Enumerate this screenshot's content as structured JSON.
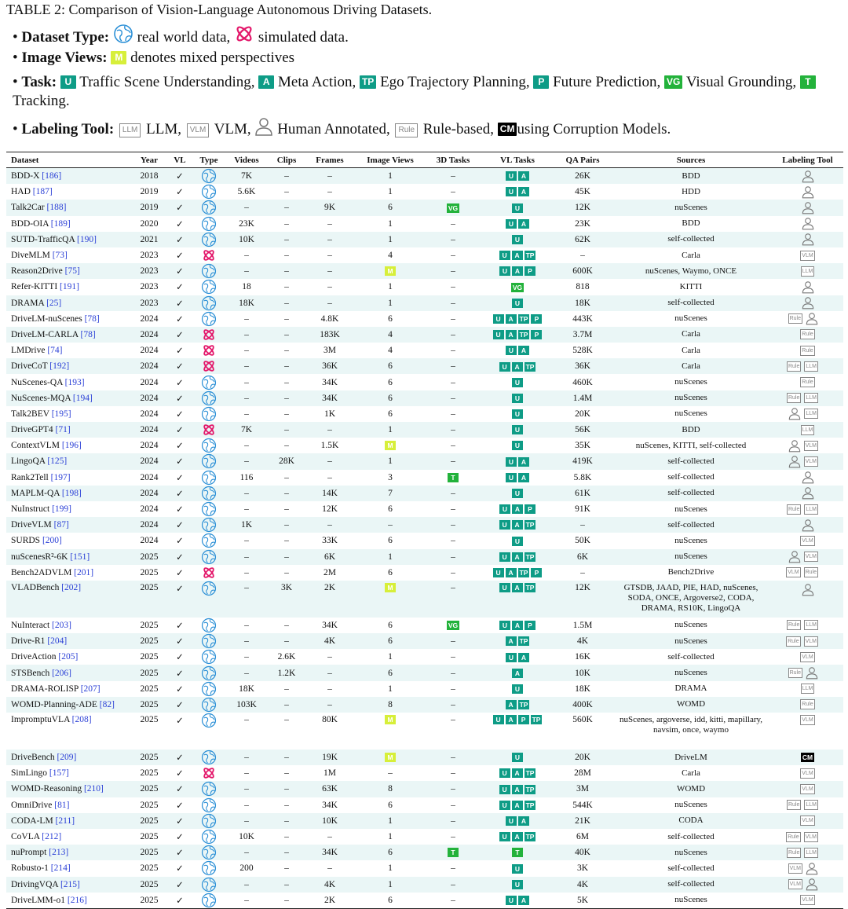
{
  "caption": "TABLE 2: Comparison of Vision-Language Autonomous Driving Datasets.",
  "legend": {
    "dataset_type_label": "Dataset Type:",
    "real_text": "real world data,",
    "sim_text": "simulated data.",
    "image_views_label": "Image Views:",
    "mixed_chip": "M",
    "mixed_text": "denotes mixed perspectives",
    "task_label": "Task:",
    "tasks": [
      {
        "chip": "U",
        "text": "Traffic Scene Understanding,",
        "color": "teal"
      },
      {
        "chip": "A",
        "text": "Meta Action,",
        "color": "teal"
      },
      {
        "chip": "TP",
        "text": "Ego Trajectory Planning,",
        "color": "teal"
      },
      {
        "chip": "P",
        "text": "Future Prediction,",
        "color": "teal"
      },
      {
        "chip": "VG",
        "text": "Visual Grounding,",
        "color": "green"
      },
      {
        "chip": "T",
        "text": "Tracking.",
        "color": "green"
      }
    ],
    "labeling_label": "Labeling Tool:",
    "tools": [
      {
        "chip": "LLM",
        "text": "LLM,"
      },
      {
        "chip": "VLM",
        "text": "VLM,"
      },
      {
        "chip": "person",
        "text": "Human Annotated,"
      },
      {
        "chip": "Rule",
        "text": "Rule-based,"
      },
      {
        "chip": "CM",
        "text": "using Corruption Models."
      }
    ]
  },
  "headers": [
    "Dataset",
    "Year",
    "VL",
    "Type",
    "Videos",
    "Clips",
    "Frames",
    "Image Views",
    "3D Tasks",
    "VL Tasks",
    "QA Pairs",
    "Sources",
    "Labeling Tool"
  ],
  "rows": [
    {
      "name": "BDD-X",
      "ref": "[186]",
      "year": "2018",
      "vl": "✓",
      "type": "real",
      "videos": "7K",
      "clips": "–",
      "frames": "–",
      "views": "1",
      "d3": "–",
      "tasks": [
        "U",
        "A"
      ],
      "qa": "26K",
      "sources": "BDD",
      "tools": [
        "person"
      ]
    },
    {
      "name": "HAD",
      "ref": "[187]",
      "year": "2019",
      "vl": "✓",
      "type": "real",
      "videos": "5.6K",
      "clips": "–",
      "frames": "–",
      "views": "1",
      "d3": "–",
      "tasks": [
        "U",
        "A"
      ],
      "qa": "45K",
      "sources": "HDD",
      "tools": [
        "person"
      ]
    },
    {
      "name": "Talk2Car",
      "ref": "[188]",
      "year": "2019",
      "vl": "✓",
      "type": "real",
      "videos": "–",
      "clips": "–",
      "frames": "9K",
      "views": "6",
      "d3": "VG",
      "tasks": [
        "U"
      ],
      "qa": "12K",
      "sources": "nuScenes",
      "tools": [
        "person"
      ]
    },
    {
      "name": "BDD-OIA",
      "ref": "[189]",
      "year": "2020",
      "vl": "✓",
      "type": "real",
      "videos": "23K",
      "clips": "–",
      "frames": "–",
      "views": "1",
      "d3": "–",
      "tasks": [
        "U",
        "A"
      ],
      "qa": "23K",
      "sources": "BDD",
      "tools": [
        "person"
      ]
    },
    {
      "name": "SUTD-TrafficQA",
      "ref": "[190]",
      "year": "2021",
      "vl": "✓",
      "type": "real",
      "videos": "10K",
      "clips": "–",
      "frames": "–",
      "views": "1",
      "d3": "–",
      "tasks": [
        "U"
      ],
      "qa": "62K",
      "sources": "self-collected",
      "tools": [
        "person"
      ]
    },
    {
      "name": "DiveMLM",
      "ref": "[73]",
      "year": "2023",
      "vl": "✓",
      "type": "sim",
      "videos": "–",
      "clips": "–",
      "frames": "–",
      "views": "4",
      "d3": "–",
      "tasks": [
        "U",
        "A",
        "TP"
      ],
      "qa": "–",
      "sources": "Carla",
      "tools": [
        "VLM"
      ]
    },
    {
      "name": "Reason2Drive",
      "ref": "[75]",
      "year": "2023",
      "vl": "✓",
      "type": "real",
      "videos": "–",
      "clips": "–",
      "frames": "–",
      "views": "M",
      "d3": "–",
      "tasks": [
        "U",
        "A",
        "P"
      ],
      "qa": "600K",
      "sources": "nuScenes, Waymo, ONCE",
      "tools": [
        "LLM"
      ]
    },
    {
      "name": "Refer-KITTI",
      "ref": "[191]",
      "year": "2023",
      "vl": "✓",
      "type": "real",
      "videos": "18",
      "clips": "–",
      "frames": "–",
      "views": "1",
      "d3": "–",
      "tasks": [
        "VG"
      ],
      "qa": "818",
      "sources": "KITTI",
      "tools": [
        "person"
      ]
    },
    {
      "name": "DRAMA",
      "ref": "[25]",
      "year": "2023",
      "vl": "✓",
      "type": "real",
      "videos": "18K",
      "clips": "–",
      "frames": "–",
      "views": "1",
      "d3": "–",
      "tasks": [
        "U"
      ],
      "qa": "18K",
      "sources": "self-collected",
      "tools": [
        "person"
      ]
    },
    {
      "name": "DriveLM-nuScenes",
      "ref": "[78]",
      "year": "2024",
      "vl": "✓",
      "type": "real",
      "videos": "–",
      "clips": "–",
      "frames": "4.8K",
      "views": "6",
      "d3": "–",
      "tasks": [
        "U",
        "A",
        "TP",
        "P"
      ],
      "qa": "443K",
      "sources": "nuScenes",
      "tools": [
        "Rule",
        "person"
      ]
    },
    {
      "name": "DriveLM-CARLA",
      "ref": "[78]",
      "year": "2024",
      "vl": "✓",
      "type": "sim",
      "videos": "–",
      "clips": "–",
      "frames": "183K",
      "views": "4",
      "d3": "–",
      "tasks": [
        "U",
        "A",
        "TP",
        "P"
      ],
      "qa": "3.7M",
      "sources": "Carla",
      "tools": [
        "Rule"
      ]
    },
    {
      "name": "LMDrive",
      "ref": "[74]",
      "year": "2024",
      "vl": "✓",
      "type": "sim",
      "videos": "–",
      "clips": "–",
      "frames": "3M",
      "views": "4",
      "d3": "–",
      "tasks": [
        "U",
        "A"
      ],
      "qa": "528K",
      "sources": "Carla",
      "tools": [
        "Rule"
      ]
    },
    {
      "name": "DriveCoT",
      "ref": "[192]",
      "year": "2024",
      "vl": "✓",
      "type": "sim",
      "videos": "–",
      "clips": "–",
      "frames": "36K",
      "views": "6",
      "d3": "–",
      "tasks": [
        "U",
        "A",
        "TP"
      ],
      "qa": "36K",
      "sources": "Carla",
      "tools": [
        "Rule",
        "LLM"
      ]
    },
    {
      "name": "NuScenes-QA",
      "ref": "[193]",
      "year": "2024",
      "vl": "✓",
      "type": "real",
      "videos": "–",
      "clips": "–",
      "frames": "34K",
      "views": "6",
      "d3": "–",
      "tasks": [
        "U"
      ],
      "qa": "460K",
      "sources": "nuScenes",
      "tools": [
        "Rule"
      ]
    },
    {
      "name": "NuScenes-MQA",
      "ref": "[194]",
      "year": "2024",
      "vl": "✓",
      "type": "real",
      "videos": "–",
      "clips": "–",
      "frames": "34K",
      "views": "6",
      "d3": "–",
      "tasks": [
        "U"
      ],
      "qa": "1.4M",
      "sources": "nuScenes",
      "tools": [
        "Rule",
        "LLM"
      ]
    },
    {
      "name": "Talk2BEV",
      "ref": "[195]",
      "year": "2024",
      "vl": "✓",
      "type": "real",
      "videos": "–",
      "clips": "–",
      "frames": "1K",
      "views": "6",
      "d3": "–",
      "tasks": [
        "U"
      ],
      "qa": "20K",
      "sources": "nuScenes",
      "tools": [
        "person",
        "LLM"
      ]
    },
    {
      "name": "DriveGPT4",
      "ref": "[71]",
      "year": "2024",
      "vl": "✓",
      "type": "sim",
      "videos": "7K",
      "clips": "–",
      "frames": "–",
      "views": "1",
      "d3": "–",
      "tasks": [
        "U"
      ],
      "qa": "56K",
      "sources": "BDD",
      "tools": [
        "LLM"
      ]
    },
    {
      "name": "ContextVLM",
      "ref": "[196]",
      "year": "2024",
      "vl": "✓",
      "type": "real",
      "videos": "–",
      "clips": "–",
      "frames": "1.5K",
      "views": "M",
      "d3": "–",
      "tasks": [
        "U"
      ],
      "qa": "35K",
      "sources": "nuScenes, KITTI, self-collected",
      "tools": [
        "person",
        "VLM"
      ]
    },
    {
      "name": "LingoQA",
      "ref": "[125]",
      "year": "2024",
      "vl": "✓",
      "type": "real",
      "videos": "–",
      "clips": "28K",
      "frames": "–",
      "views": "1",
      "d3": "–",
      "tasks": [
        "U",
        "A"
      ],
      "qa": "419K",
      "sources": "self-collected",
      "tools": [
        "person",
        "VLM"
      ]
    },
    {
      "name": "Rank2Tell",
      "ref": "[197]",
      "year": "2024",
      "vl": "✓",
      "type": "real",
      "videos": "116",
      "clips": "–",
      "frames": "–",
      "views": "3",
      "d3": "T",
      "tasks": [
        "U",
        "A"
      ],
      "qa": "5.8K",
      "sources": "self-collected",
      "tools": [
        "person"
      ]
    },
    {
      "name": "MAPLM-QA",
      "ref": "[198]",
      "year": "2024",
      "vl": "✓",
      "type": "real",
      "videos": "–",
      "clips": "–",
      "frames": "14K",
      "views": "7",
      "d3": "–",
      "tasks": [
        "U"
      ],
      "qa": "61K",
      "sources": "self-collected",
      "tools": [
        "person"
      ]
    },
    {
      "name": "NuInstruct",
      "ref": "[199]",
      "year": "2024",
      "vl": "✓",
      "type": "real",
      "videos": "–",
      "clips": "–",
      "frames": "12K",
      "views": "6",
      "d3": "–",
      "tasks": [
        "U",
        "A",
        "P"
      ],
      "qa": "91K",
      "sources": "nuScenes",
      "tools": [
        "Rule",
        "LLM"
      ]
    },
    {
      "name": "DriveVLM",
      "ref": "[87]",
      "year": "2024",
      "vl": "✓",
      "type": "real",
      "videos": "1K",
      "clips": "–",
      "frames": "–",
      "views": "–",
      "d3": "–",
      "tasks": [
        "U",
        "A",
        "TP"
      ],
      "qa": "–",
      "sources": "self-collected",
      "tools": [
        "person"
      ]
    },
    {
      "name": "SURDS",
      "ref": "[200]",
      "year": "2024",
      "vl": "✓",
      "type": "real",
      "videos": "–",
      "clips": "–",
      "frames": "33K",
      "views": "6",
      "d3": "–",
      "tasks": [
        "U"
      ],
      "qa": "50K",
      "sources": "nuScenes",
      "tools": [
        "VLM"
      ]
    },
    {
      "name": "nuScenesR²-6K",
      "ref": "[151]",
      "year": "2025",
      "vl": "✓",
      "type": "real",
      "videos": "–",
      "clips": "–",
      "frames": "6K",
      "views": "1",
      "d3": "–",
      "tasks": [
        "U",
        "A",
        "TP"
      ],
      "qa": "6K",
      "sources": "nuScenes",
      "tools": [
        "person",
        "VLM"
      ]
    },
    {
      "name": "Bench2ADVLM",
      "ref": "[201]",
      "year": "2025",
      "vl": "✓",
      "type": "sim",
      "videos": "–",
      "clips": "–",
      "frames": "2M",
      "views": "6",
      "d3": "–",
      "tasks": [
        "U",
        "A",
        "TP",
        "P"
      ],
      "qa": "–",
      "sources": "Bench2Drive",
      "tools": [
        "VLM",
        "Rule"
      ]
    },
    {
      "name": "VLADBench",
      "ref": "[202]",
      "year": "2025",
      "vl": "✓",
      "type": "real",
      "videos": "–",
      "clips": "3K",
      "frames": "2K",
      "views": "M",
      "d3": "–",
      "tasks": [
        "U",
        "A",
        "TP"
      ],
      "qa": "12K",
      "sources": "GTSDB, JAAD, PIE, HAD, nuScenes, SODA, ONCE, Argoverse2, CODA, DRAMA, RS10K, LingoQA",
      "tools": [
        "person"
      ],
      "tall": true
    },
    {
      "name": "NuInteract",
      "ref": "[203]",
      "year": "2025",
      "vl": "✓",
      "type": "real",
      "videos": "–",
      "clips": "–",
      "frames": "34K",
      "views": "6",
      "d3": "VG",
      "tasks": [
        "U",
        "A",
        "P"
      ],
      "qa": "1.5M",
      "sources": "nuScenes",
      "tools": [
        "Rule",
        "LLM"
      ]
    },
    {
      "name": "Drive-R1",
      "ref": "[204]",
      "year": "2025",
      "vl": "✓",
      "type": "real",
      "videos": "–",
      "clips": "–",
      "frames": "4K",
      "views": "6",
      "d3": "–",
      "tasks": [
        "A",
        "TP"
      ],
      "qa": "4K",
      "sources": "nuScenes",
      "tools": [
        "Rule",
        "VLM"
      ]
    },
    {
      "name": "DriveAction",
      "ref": "[205]",
      "year": "2025",
      "vl": "✓",
      "type": "real",
      "videos": "–",
      "clips": "2.6K",
      "frames": "–",
      "views": "1",
      "d3": "–",
      "tasks": [
        "U",
        "A"
      ],
      "qa": "16K",
      "sources": "self-collected",
      "tools": [
        "VLM"
      ]
    },
    {
      "name": "STSBench",
      "ref": "[206]",
      "year": "2025",
      "vl": "✓",
      "type": "real",
      "videos": "–",
      "clips": "1.2K",
      "frames": "–",
      "views": "6",
      "d3": "–",
      "tasks": [
        "A"
      ],
      "qa": "10K",
      "sources": "nuScenes",
      "tools": [
        "Rule",
        "person"
      ]
    },
    {
      "name": "DRAMA-ROLISP",
      "ref": "[207]",
      "year": "2025",
      "vl": "✓",
      "type": "real",
      "videos": "18K",
      "clips": "–",
      "frames": "–",
      "views": "1",
      "d3": "–",
      "tasks": [
        "U"
      ],
      "qa": "18K",
      "sources": "DRAMA",
      "tools": [
        "LLM"
      ]
    },
    {
      "name": "WOMD-Planning-ADE",
      "ref": "[82]",
      "year": "2025",
      "vl": "✓",
      "type": "real",
      "videos": "103K",
      "clips": "–",
      "frames": "–",
      "views": "8",
      "d3": "–",
      "tasks": [
        "A",
        "TP"
      ],
      "qa": "400K",
      "sources": "WOMD",
      "tools": [
        "Rule"
      ]
    },
    {
      "name": "ImpromptuVLA",
      "ref": "[208]",
      "year": "2025",
      "vl": "✓",
      "type": "real",
      "videos": "–",
      "clips": "–",
      "frames": "80K",
      "views": "M",
      "d3": "–",
      "tasks": [
        "U",
        "A",
        "P",
        "TP"
      ],
      "qa": "560K",
      "sources": "nuScenes, argoverse, idd, kitti, mapillary, navsim, once, waymo",
      "tools": [
        "VLM"
      ],
      "tall": true
    },
    {
      "name": "DriveBench",
      "ref": "[209]",
      "year": "2025",
      "vl": "✓",
      "type": "real",
      "videos": "–",
      "clips": "–",
      "frames": "19K",
      "views": "M",
      "d3": "–",
      "tasks": [
        "U"
      ],
      "qa": "20K",
      "sources": "DriveLM",
      "tools": [
        "CM"
      ]
    },
    {
      "name": "SimLingo",
      "ref": "[157]",
      "year": "2025",
      "vl": "✓",
      "type": "sim",
      "videos": "–",
      "clips": "–",
      "frames": "1M",
      "views": "–",
      "d3": "–",
      "tasks": [
        "U",
        "A",
        "TP"
      ],
      "qa": "28M",
      "sources": "Carla",
      "tools": [
        "VLM"
      ]
    },
    {
      "name": "WOMD-Reasoning",
      "ref": "[210]",
      "year": "2025",
      "vl": "✓",
      "type": "real",
      "videos": "–",
      "clips": "–",
      "frames": "63K",
      "views": "8",
      "d3": "–",
      "tasks": [
        "U",
        "A",
        "TP"
      ],
      "qa": "3M",
      "sources": "WOMD",
      "tools": [
        "VLM"
      ]
    },
    {
      "name": "OmniDrive",
      "ref": "[81]",
      "year": "2025",
      "vl": "✓",
      "type": "real",
      "videos": "–",
      "clips": "–",
      "frames": "34K",
      "views": "6",
      "d3": "–",
      "tasks": [
        "U",
        "A",
        "TP"
      ],
      "qa": "544K",
      "sources": "nuScenes",
      "tools": [
        "Rule",
        "LLM"
      ]
    },
    {
      "name": "CODA-LM",
      "ref": "[211]",
      "year": "2025",
      "vl": "✓",
      "type": "real",
      "videos": "–",
      "clips": "–",
      "frames": "10K",
      "views": "1",
      "d3": "–",
      "tasks": [
        "U",
        "A"
      ],
      "qa": "21K",
      "sources": "CODA",
      "tools": [
        "VLM"
      ]
    },
    {
      "name": "CoVLA",
      "ref": "[212]",
      "year": "2025",
      "vl": "✓",
      "type": "real",
      "videos": "10K",
      "clips": "–",
      "frames": "–",
      "views": "1",
      "d3": "–",
      "tasks": [
        "U",
        "A",
        "TP"
      ],
      "qa": "6M",
      "sources": "self-collected",
      "tools": [
        "Rule",
        "VLM"
      ]
    },
    {
      "name": "nuPrompt",
      "ref": "[213]",
      "year": "2025",
      "vl": "✓",
      "type": "real",
      "videos": "–",
      "clips": "–",
      "frames": "34K",
      "views": "6",
      "d3": "T",
      "tasks": [
        "T"
      ],
      "qa": "40K",
      "sources": "nuScenes",
      "tools": [
        "Rule",
        "LLM"
      ]
    },
    {
      "name": "Robusto-1",
      "ref": "[214]",
      "year": "2025",
      "vl": "✓",
      "type": "real",
      "videos": "200",
      "clips": "–",
      "frames": "–",
      "views": "1",
      "d3": "–",
      "tasks": [
        "U"
      ],
      "qa": "3K",
      "sources": "self-collected",
      "tools": [
        "VLM",
        "person"
      ]
    },
    {
      "name": "DrivingVQA",
      "ref": "[215]",
      "year": "2025",
      "vl": "✓",
      "type": "real",
      "videos": "–",
      "clips": "–",
      "frames": "4K",
      "views": "1",
      "d3": "–",
      "tasks": [
        "U"
      ],
      "qa": "4K",
      "sources": "self-collected",
      "tools": [
        "VLM",
        "person"
      ]
    },
    {
      "name": "DriveLMM-o1",
      "ref": "[216]",
      "year": "2025",
      "vl": "✓",
      "type": "real",
      "videos": "–",
      "clips": "–",
      "frames": "2K",
      "views": "6",
      "d3": "–",
      "tasks": [
        "U",
        "A"
      ],
      "qa": "5K",
      "sources": "nuScenes",
      "tools": [
        "VLM"
      ]
    }
  ]
}
